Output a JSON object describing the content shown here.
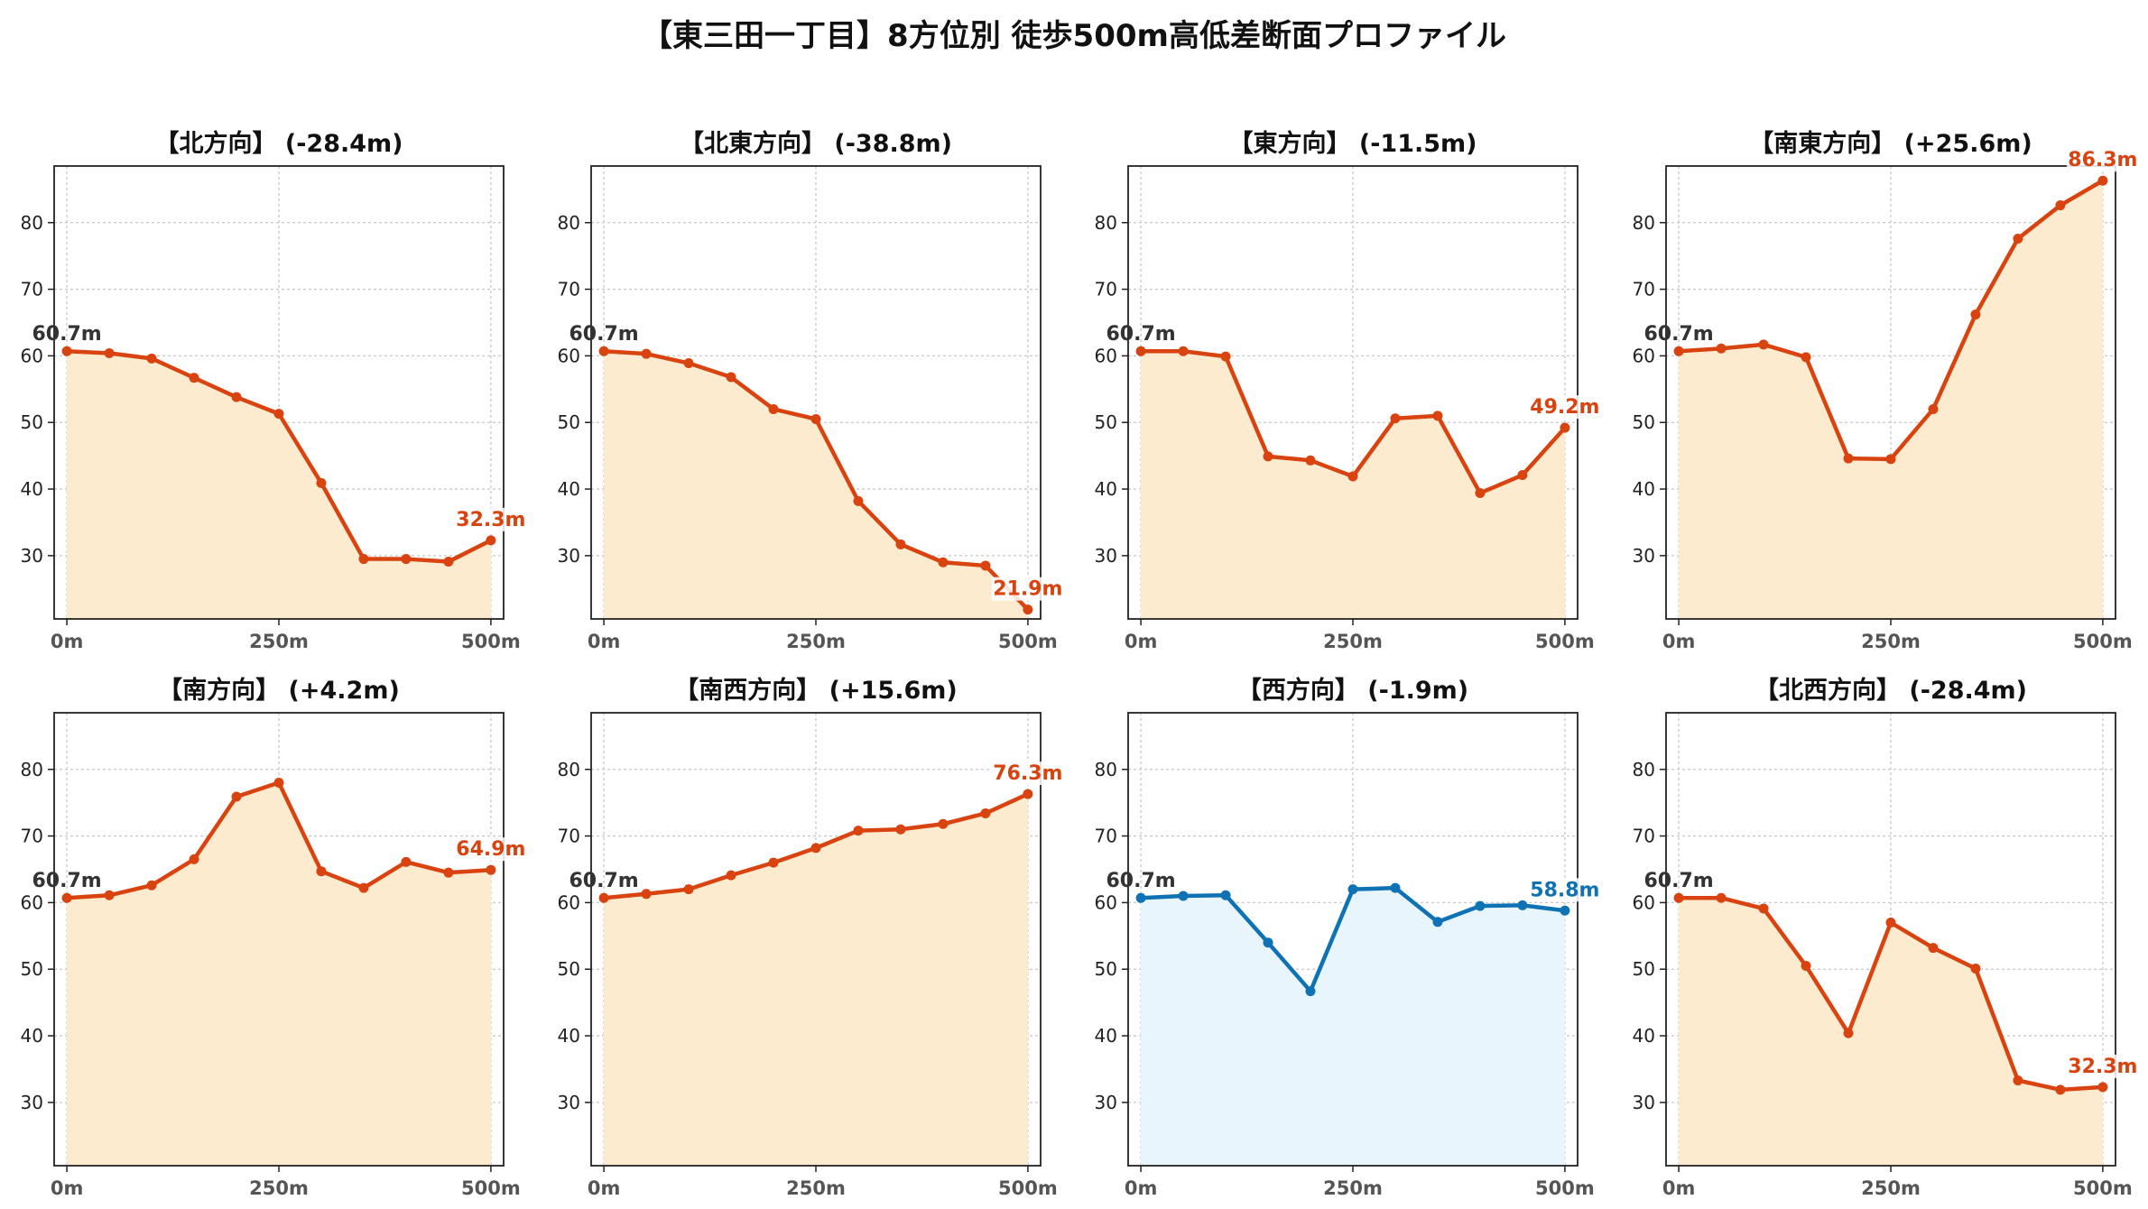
{
  "title": "【東三田一丁目】8方位別 徒歩500m高低差断面プロファイル",
  "chart_data": [
    {
      "type": "area",
      "title": "【北方向】 (-28.4m)",
      "x": [
        0,
        50,
        100,
        150,
        200,
        250,
        300,
        350,
        400,
        450,
        500
      ],
      "values": [
        60.7,
        60.4,
        59.6,
        56.7,
        53.8,
        51.3,
        40.9,
        29.5,
        29.5,
        29.1,
        32.3
      ],
      "start_label": "60.7m",
      "end_label": "32.3m",
      "xticks": [
        "0m",
        "250m",
        "500m"
      ],
      "yticks": [
        30,
        40,
        50,
        60,
        70,
        80
      ],
      "ylim": [
        20.5,
        88.5
      ],
      "xlim": [
        -15,
        515
      ],
      "grid": true,
      "line_color": "#d9430f",
      "fill_color": "#fdebd0"
    },
    {
      "type": "area",
      "title": "【北東方向】 (-38.8m)",
      "x": [
        0,
        50,
        100,
        150,
        200,
        250,
        300,
        350,
        400,
        450,
        500
      ],
      "values": [
        60.7,
        60.3,
        58.9,
        56.8,
        52.0,
        50.5,
        38.2,
        31.7,
        29.0,
        28.5,
        21.9
      ],
      "start_label": "60.7m",
      "end_label": "21.9m",
      "xticks": [
        "0m",
        "250m",
        "500m"
      ],
      "yticks": [
        30,
        40,
        50,
        60,
        70,
        80
      ],
      "ylim": [
        20.5,
        88.5
      ],
      "xlim": [
        -15,
        515
      ],
      "grid": true,
      "line_color": "#d9430f",
      "fill_color": "#fdebd0"
    },
    {
      "type": "area",
      "title": "【東方向】 (-11.5m)",
      "x": [
        0,
        50,
        100,
        150,
        200,
        250,
        300,
        350,
        400,
        450,
        500
      ],
      "values": [
        60.7,
        60.7,
        59.9,
        44.9,
        44.3,
        41.9,
        50.6,
        51.0,
        39.4,
        42.1,
        49.2
      ],
      "start_label": "60.7m",
      "end_label": "49.2m",
      "xticks": [
        "0m",
        "250m",
        "500m"
      ],
      "yticks": [
        30,
        40,
        50,
        60,
        70,
        80
      ],
      "ylim": [
        20.5,
        88.5
      ],
      "xlim": [
        -15,
        515
      ],
      "grid": true,
      "line_color": "#d9430f",
      "fill_color": "#fdebd0"
    },
    {
      "type": "area",
      "title": "【南東方向】 (+25.6m)",
      "x": [
        0,
        50,
        100,
        150,
        200,
        250,
        300,
        350,
        400,
        450,
        500
      ],
      "values": [
        60.7,
        61.1,
        61.7,
        59.8,
        44.6,
        44.5,
        52.0,
        66.2,
        77.6,
        82.6,
        86.3
      ],
      "start_label": "60.7m",
      "end_label": "86.3m",
      "xticks": [
        "0m",
        "250m",
        "500m"
      ],
      "yticks": [
        30,
        40,
        50,
        60,
        70,
        80
      ],
      "ylim": [
        20.5,
        88.5
      ],
      "xlim": [
        -15,
        515
      ],
      "grid": true,
      "line_color": "#d9430f",
      "fill_color": "#fdebd0"
    },
    {
      "type": "area",
      "title": "【南方向】 (+4.2m)",
      "x": [
        0,
        50,
        100,
        150,
        200,
        250,
        300,
        350,
        400,
        450,
        500
      ],
      "values": [
        60.7,
        61.1,
        62.6,
        66.5,
        75.9,
        78.0,
        64.7,
        62.2,
        66.1,
        64.5,
        64.9
      ],
      "start_label": "60.7m",
      "end_label": "64.9m",
      "xticks": [
        "0m",
        "250m",
        "500m"
      ],
      "yticks": [
        30,
        40,
        50,
        60,
        70,
        80
      ],
      "ylim": [
        20.5,
        88.5
      ],
      "xlim": [
        -15,
        515
      ],
      "grid": true,
      "line_color": "#d9430f",
      "fill_color": "#fdebd0"
    },
    {
      "type": "area",
      "title": "【南西方向】 (+15.6m)",
      "x": [
        0,
        50,
        100,
        150,
        200,
        250,
        300,
        350,
        400,
        450,
        500
      ],
      "values": [
        60.7,
        61.3,
        62.0,
        64.1,
        66.0,
        68.2,
        70.8,
        71.0,
        71.8,
        73.4,
        76.3
      ],
      "start_label": "60.7m",
      "end_label": "76.3m",
      "xticks": [
        "0m",
        "250m",
        "500m"
      ],
      "yticks": [
        30,
        40,
        50,
        60,
        70,
        80
      ],
      "ylim": [
        20.5,
        88.5
      ],
      "xlim": [
        -15,
        515
      ],
      "grid": true,
      "line_color": "#d9430f",
      "fill_color": "#fdebd0"
    },
    {
      "type": "area",
      "title": "【西方向】 (-1.9m)",
      "x": [
        0,
        50,
        100,
        150,
        200,
        250,
        300,
        350,
        400,
        450,
        500
      ],
      "values": [
        60.7,
        61.0,
        61.1,
        54.0,
        46.7,
        62.0,
        62.2,
        57.1,
        59.5,
        59.6,
        58.8
      ],
      "start_label": "60.7m",
      "end_label": "58.8m",
      "xticks": [
        "0m",
        "250m",
        "500m"
      ],
      "yticks": [
        30,
        40,
        50,
        60,
        70,
        80
      ],
      "ylim": [
        20.5,
        88.5
      ],
      "xlim": [
        -15,
        515
      ],
      "grid": true,
      "line_color": "#0f72b5",
      "fill_color": "#e8f5fc"
    },
    {
      "type": "area",
      "title": "【北西方向】 (-28.4m)",
      "x": [
        0,
        50,
        100,
        150,
        200,
        250,
        300,
        350,
        400,
        450,
        500
      ],
      "values": [
        60.7,
        60.7,
        59.1,
        50.5,
        40.4,
        57.0,
        53.2,
        50.1,
        33.3,
        31.9,
        32.3
      ],
      "start_label": "60.7m",
      "end_label": "32.3m",
      "xticks": [
        "0m",
        "250m",
        "500m"
      ],
      "yticks": [
        30,
        40,
        50,
        60,
        70,
        80
      ],
      "ylim": [
        20.5,
        88.5
      ],
      "xlim": [
        -15,
        515
      ],
      "grid": true,
      "line_color": "#d9430f",
      "fill_color": "#fdebd0"
    }
  ]
}
